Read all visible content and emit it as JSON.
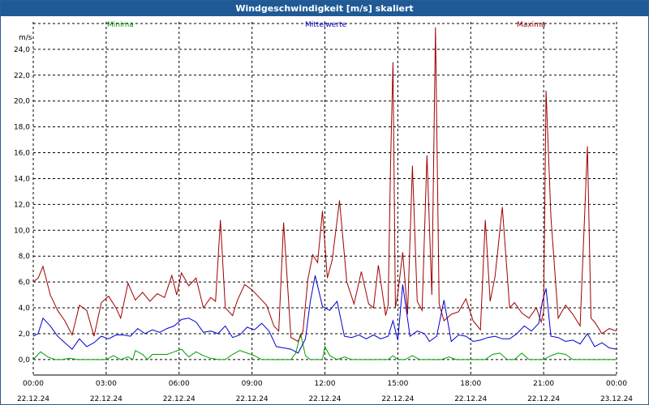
{
  "window": {
    "title": "Windgeschwindigkeit [m/s] skaliert"
  },
  "chart_data": {
    "type": "line",
    "title": "Windgeschwindigkeit [m/s] skaliert",
    "ylabel": "m/s",
    "ylim": [
      -1.2,
      26.5
    ],
    "yticks": [
      0,
      2,
      4,
      6,
      8,
      10,
      12,
      14,
      16,
      18,
      20,
      22,
      24
    ],
    "ytick_labels": [
      "0,0",
      "2,0",
      "4,0",
      "6,0",
      "8,0",
      "10,0",
      "12,0",
      "14,0",
      "16,0",
      "18,0",
      "20,0",
      "22,0",
      "24,0"
    ],
    "xlim": [
      0,
      24
    ],
    "xticks": [
      0,
      3,
      6,
      9,
      12,
      15,
      18,
      21,
      24
    ],
    "xtick_times": [
      "00:00",
      "03:00",
      "06:00",
      "09:00",
      "12:00",
      "15:00",
      "18:00",
      "21:00",
      "00:00"
    ],
    "xtick_dates": [
      "22.12.24",
      "22.12.24",
      "22.12.24",
      "22.12.24",
      "22.12.24",
      "22.12.24",
      "22.12.24",
      "22.12.24",
      "23.12.24"
    ],
    "grid": true,
    "legend_position": "top",
    "series": [
      {
        "name": "Minima",
        "color": "#00a000",
        "x": [
          0,
          0.3,
          0.6,
          0.9,
          1.2,
          1.5,
          1.8,
          2.1,
          2.4,
          2.7,
          3.0,
          3.3,
          3.6,
          3.9,
          4.1,
          4.2,
          4.5,
          4.7,
          4.9,
          5.2,
          5.5,
          5.8,
          6.1,
          6.4,
          6.7,
          7.0,
          7.3,
          7.6,
          7.9,
          8.2,
          8.5,
          8.8,
          9.1,
          9.4,
          9.7,
          10.0,
          10.3,
          10.6,
          10.8,
          11.0,
          11.2,
          11.4,
          11.7,
          11.9,
          12.0,
          12.2,
          12.5,
          12.8,
          13.1,
          13.4,
          13.7,
          14.0,
          14.3,
          14.6,
          14.8,
          15.0,
          15.3,
          15.6,
          15.9,
          16.2,
          16.5,
          16.8,
          17.1,
          17.4,
          17.7,
          18.0,
          18.3,
          18.6,
          18.9,
          19.2,
          19.5,
          19.8,
          20.1,
          20.4,
          20.7,
          21.0,
          21.3,
          21.6,
          21.9,
          22.2,
          22.5,
          22.8,
          23.1,
          23.4,
          23.7,
          24.0
        ],
        "values": [
          0.0,
          0.6,
          0.2,
          0.0,
          0.0,
          0.1,
          0.0,
          0.0,
          0.0,
          0.0,
          0.0,
          0.3,
          0.0,
          0.2,
          0.0,
          0.7,
          0.4,
          0.0,
          0.4,
          0.4,
          0.4,
          0.6,
          0.8,
          0.2,
          0.6,
          0.3,
          0.1,
          0.0,
          0.0,
          0.4,
          0.7,
          0.5,
          0.3,
          0.0,
          0.0,
          0.0,
          0.0,
          0.0,
          0.5,
          2.0,
          0.3,
          0.0,
          0.0,
          0.0,
          1.0,
          0.3,
          0.0,
          0.2,
          0.0,
          0.0,
          0.0,
          0.0,
          0.0,
          0.0,
          0.3,
          0.0,
          0.0,
          0.3,
          0.0,
          0.0,
          0.0,
          0.0,
          0.2,
          0.0,
          0.0,
          0.0,
          0.0,
          0.0,
          0.4,
          0.5,
          0.0,
          0.0,
          0.5,
          0.0,
          0.0,
          0.0,
          0.3,
          0.5,
          0.4,
          0.0,
          0.0,
          0.0,
          0.0,
          0.0,
          0.0,
          0.0
        ]
      },
      {
        "name": "Mittelwerte",
        "color": "#0000d0",
        "x": [
          0,
          0.2,
          0.4,
          0.7,
          1.0,
          1.3,
          1.6,
          1.9,
          2.2,
          2.5,
          2.8,
          3.1,
          3.4,
          3.7,
          4.0,
          4.3,
          4.6,
          4.9,
          5.2,
          5.5,
          5.8,
          6.1,
          6.4,
          6.7,
          7.0,
          7.3,
          7.6,
          7.9,
          8.2,
          8.5,
          8.8,
          9.1,
          9.4,
          9.7,
          10.0,
          10.3,
          10.6,
          10.9,
          11.2,
          11.4,
          11.6,
          11.9,
          12.2,
          12.5,
          12.8,
          13.1,
          13.4,
          13.7,
          14.0,
          14.3,
          14.6,
          14.8,
          15.0,
          15.2,
          15.5,
          15.8,
          16.1,
          16.3,
          16.6,
          16.9,
          17.2,
          17.5,
          17.8,
          18.1,
          18.4,
          18.7,
          19.0,
          19.3,
          19.6,
          19.9,
          20.2,
          20.5,
          20.8,
          20.95,
          21.1,
          21.3,
          21.6,
          21.9,
          22.2,
          22.5,
          22.8,
          23.1,
          23.4,
          23.7,
          24.0
        ],
        "values": [
          1.8,
          2.0,
          3.2,
          2.6,
          1.8,
          1.3,
          0.8,
          1.6,
          1.0,
          1.3,
          1.8,
          1.6,
          1.9,
          1.9,
          1.8,
          2.4,
          2.0,
          2.3,
          2.1,
          2.4,
          2.6,
          3.1,
          3.2,
          2.9,
          2.1,
          2.2,
          2.0,
          2.6,
          1.7,
          1.9,
          2.5,
          2.3,
          2.8,
          2.2,
          1.0,
          0.9,
          0.8,
          0.5,
          1.6,
          4.5,
          6.5,
          4.1,
          3.8,
          4.5,
          1.8,
          1.7,
          1.9,
          1.6,
          1.9,
          1.6,
          1.8,
          3.0,
          1.5,
          5.8,
          1.8,
          2.2,
          2.0,
          1.4,
          1.8,
          4.6,
          1.4,
          1.9,
          1.8,
          1.4,
          1.5,
          1.7,
          1.8,
          1.6,
          1.6,
          2.0,
          2.6,
          2.2,
          2.8,
          4.5,
          5.5,
          1.8,
          1.7,
          1.4,
          1.5,
          1.2,
          2.0,
          1.0,
          1.3,
          0.9,
          0.8
        ]
      },
      {
        "name": "Maxima",
        "color": "#a00000",
        "x": [
          0,
          0.2,
          0.4,
          0.7,
          1.0,
          1.3,
          1.6,
          1.9,
          2.2,
          2.5,
          2.8,
          3.1,
          3.4,
          3.6,
          3.9,
          4.2,
          4.5,
          4.8,
          5.1,
          5.4,
          5.7,
          5.9,
          6.1,
          6.4,
          6.7,
          7.0,
          7.3,
          7.5,
          7.7,
          7.9,
          8.2,
          8.4,
          8.7,
          9.0,
          9.3,
          9.6,
          9.9,
          10.1,
          10.3,
          10.6,
          10.9,
          11.1,
          11.3,
          11.5,
          11.7,
          11.9,
          12.1,
          12.3,
          12.6,
          12.9,
          13.2,
          13.5,
          13.8,
          14.0,
          14.2,
          14.5,
          14.6,
          14.7,
          14.8,
          14.9,
          15.0,
          15.2,
          15.4,
          15.6,
          15.8,
          16.0,
          16.2,
          16.4,
          16.55,
          16.7,
          16.9,
          17.2,
          17.5,
          17.8,
          18.1,
          18.4,
          18.6,
          18.8,
          19.0,
          19.3,
          19.6,
          19.8,
          20.1,
          20.4,
          20.7,
          20.9,
          21.0,
          21.1,
          21.3,
          21.6,
          21.9,
          22.2,
          22.5,
          22.8,
          22.95,
          23.1,
          23.4,
          23.7,
          24.0
        ],
        "values": [
          6.0,
          6.3,
          7.2,
          5.0,
          3.8,
          3.0,
          1.9,
          4.2,
          3.8,
          1.8,
          4.4,
          4.9,
          4.0,
          3.2,
          5.9,
          4.6,
          5.2,
          4.5,
          5.1,
          4.8,
          6.5,
          5.0,
          6.7,
          5.7,
          6.3,
          4.0,
          4.8,
          4.5,
          10.8,
          4.0,
          3.4,
          4.6,
          5.8,
          5.4,
          4.8,
          4.2,
          2.6,
          2.2,
          10.6,
          1.7,
          1.4,
          2.2,
          6.2,
          8.1,
          7.5,
          11.5,
          6.3,
          7.7,
          12.3,
          6.0,
          4.3,
          6.8,
          4.3,
          4.0,
          7.3,
          3.4,
          4.2,
          15.0,
          23.0,
          4.0,
          5.1,
          8.3,
          3.5,
          15.0,
          4.5,
          3.8,
          15.8,
          5.0,
          25.7,
          4.3,
          3.0,
          3.5,
          3.7,
          4.7,
          3.0,
          2.3,
          10.8,
          4.5,
          6.4,
          11.8,
          4.0,
          4.4,
          3.6,
          3.2,
          4.0,
          2.9,
          3.7,
          20.8,
          11.0,
          3.2,
          4.2,
          3.5,
          2.6,
          16.5,
          3.2,
          2.9,
          2.0,
          2.4,
          2.2
        ]
      }
    ]
  }
}
